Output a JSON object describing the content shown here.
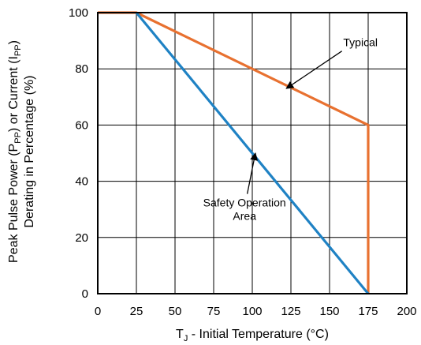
{
  "chart_data": {
    "type": "line",
    "xlabel": "T_J - Initial Temperature (°C)",
    "xlabel_main": "T",
    "xlabel_sub": "J",
    "xlabel_rest": " - Initial Temperature (°C)",
    "ylabel_line1_parts": [
      "Peak Pulse Power (P",
      "PP",
      ") or Current (I",
      "PP",
      ")"
    ],
    "ylabel_line2": "Derating in Percentage (%)",
    "xlim": [
      0,
      200
    ],
    "ylim": [
      0,
      100
    ],
    "xticks": [
      0,
      25,
      50,
      75,
      100,
      125,
      150,
      175,
      200
    ],
    "yticks": [
      0,
      20,
      40,
      60,
      80,
      100
    ],
    "grid": true,
    "series": [
      {
        "name": "Typical",
        "color": "#e87130",
        "points": [
          [
            0,
            100
          ],
          [
            25,
            100
          ],
          [
            175,
            60
          ],
          [
            175,
            0
          ]
        ]
      },
      {
        "name": "Safety Operation Area",
        "color": "#1f82c4",
        "points": [
          [
            25,
            100
          ],
          [
            175,
            0
          ]
        ]
      }
    ],
    "annotations": [
      {
        "lines": [
          "Typical"
        ],
        "text_at": [
          170,
          88
        ],
        "arrow_to": [
          122,
          73
        ]
      },
      {
        "lines": [
          "Safety Operation",
          "Area"
        ],
        "text_at": [
          95,
          31
        ],
        "arrow_to": [
          102,
          50
        ]
      }
    ]
  }
}
